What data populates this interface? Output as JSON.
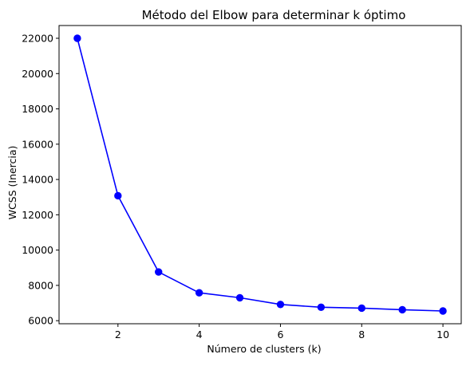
{
  "chart_data": {
    "type": "line",
    "title": "Método del Elbow para determinar k óptimo",
    "xlabel": "Número de clusters (k)",
    "ylabel": "WCSS (Inercia)",
    "x": [
      1,
      2,
      3,
      4,
      5,
      6,
      7,
      8,
      9,
      10
    ],
    "series": [
      {
        "values": [
          22000,
          13080,
          8760,
          7580,
          7300,
          6920,
          6760,
          6710,
          6620,
          6550
        ],
        "color": "#0000ff",
        "marker": "circle"
      }
    ],
    "xlim": [
      0.55,
      10.45
    ],
    "ylim": [
      5827,
      22723
    ],
    "xticks": [
      2,
      4,
      6,
      8,
      10
    ],
    "yticks": [
      6000,
      8000,
      10000,
      12000,
      14000,
      16000,
      18000,
      20000,
      22000
    ],
    "grid": false,
    "legend": "none"
  }
}
